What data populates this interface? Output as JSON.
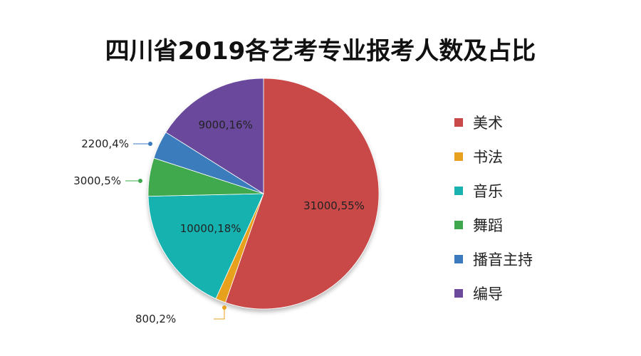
{
  "chart_data": {
    "type": "pie",
    "title": "四川省2019各艺考专业报考人数及占比",
    "categories": [
      "美术",
      "书法",
      "音乐",
      "舞蹈",
      "播音主持",
      "编导"
    ],
    "values": [
      31000,
      800,
      10000,
      3000,
      2200,
      9000
    ],
    "percent": [
      55,
      2,
      18,
      5,
      4,
      16
    ],
    "data_labels": [
      "31000,55%",
      "800,2%",
      "10000,18%",
      "3000,5%",
      "2200,4%",
      "9000,16%"
    ],
    "colors": [
      "#c9484a",
      "#e8a11f",
      "#19b2b0",
      "#3fa84e",
      "#3b7bbd",
      "#6b4a9c"
    ],
    "legend_position": "right",
    "start_angle": "top",
    "direction": "clockwise"
  }
}
